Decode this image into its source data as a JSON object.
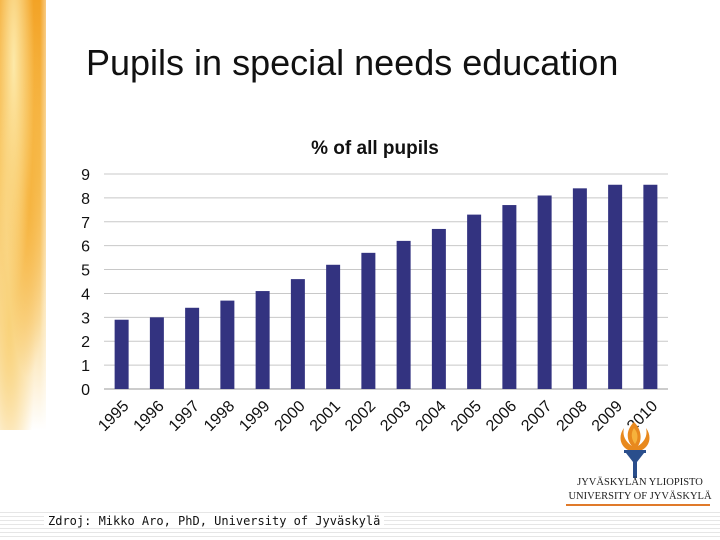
{
  "slide": {
    "title": "Pupils in special needs education",
    "source": "Zdroj: Mikko Aro, PhD, University of Jyväskylä"
  },
  "logo": {
    "name_fi": "JYVÄSKYLÄN YLIOPISTO",
    "name_en": "UNIVERSITY OF JYVÄSKYLÄ",
    "icon": "torch-flame-icon",
    "colors": {
      "flame": "#e8891e",
      "torch": "#2a4e8c",
      "rule": "#e07a2a"
    }
  },
  "chart_data": {
    "type": "bar",
    "title": "% of all pupils",
    "xlabel": "",
    "ylabel": "",
    "categories": [
      "1995",
      "1996",
      "1997",
      "1998",
      "1999",
      "2000",
      "2001",
      "2002",
      "2003",
      "2004",
      "2005",
      "2006",
      "2007",
      "2008",
      "2009",
      "2010"
    ],
    "values": [
      2.9,
      3.0,
      3.4,
      3.7,
      4.1,
      4.6,
      5.2,
      5.7,
      6.2,
      6.7,
      7.3,
      7.7,
      8.1,
      8.4,
      8.55,
      8.55
    ],
    "ylim": [
      0,
      9
    ],
    "yticks": [
      0,
      1,
      2,
      3,
      4,
      5,
      6,
      7,
      8,
      9
    ],
    "grid": true,
    "legend": "none",
    "bar_color": "#333380",
    "grid_color": "#c8c8c8"
  }
}
